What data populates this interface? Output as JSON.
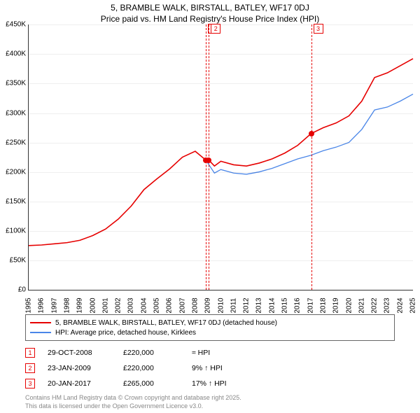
{
  "title_line1": "5, BRAMBLE WALK, BIRSTALL, BATLEY, WF17 0DJ",
  "title_line2": "Price paid vs. HM Land Registry's House Price Index (HPI)",
  "chart": {
    "type": "line",
    "background_color": "#ffffff",
    "grid_color": "#e6e6e6",
    "axis_color": "#333333",
    "ylim": [
      0,
      450000
    ],
    "ytick_step": 50000,
    "ytick_labels": [
      "£0",
      "£50K",
      "£100K",
      "£150K",
      "£200K",
      "£250K",
      "£300K",
      "£350K",
      "£400K",
      "£450K"
    ],
    "xlim": [
      1995,
      2025
    ],
    "xtick_step": 1,
    "xtick_labels": [
      "1995",
      "1996",
      "1997",
      "1998",
      "1999",
      "2000",
      "2001",
      "2002",
      "2003",
      "2004",
      "2005",
      "2006",
      "2007",
      "2008",
      "2009",
      "2010",
      "2011",
      "2012",
      "2013",
      "2014",
      "2015",
      "2016",
      "2017",
      "2018",
      "2019",
      "2020",
      "2021",
      "2022",
      "2023",
      "2024",
      "2025"
    ],
    "label_fontsize": 10,
    "series": [
      {
        "name": "price_paid",
        "label": "5, BRAMBLE WALK, BIRSTALL, BATLEY, WF17 0DJ (detached house)",
        "color": "#e60000",
        "line_width": 1.6,
        "x": [
          1995,
          1996,
          1997,
          1998,
          1999,
          2000,
          2001,
          2002,
          2003,
          2004,
          2005,
          2006,
          2007,
          2008,
          2008.83,
          2009.06,
          2009.5,
          2010,
          2011,
          2012,
          2013,
          2014,
          2015,
          2016,
          2017.05,
          2018,
          2019,
          2020,
          2021,
          2022,
          2023,
          2024,
          2025
        ],
        "y": [
          75000,
          76000,
          78000,
          80000,
          84000,
          92000,
          103000,
          120000,
          142000,
          170000,
          188000,
          205000,
          225000,
          235000,
          220000,
          220000,
          210000,
          218000,
          212000,
          210000,
          215000,
          222000,
          232000,
          245000,
          265000,
          275000,
          283000,
          295000,
          320000,
          360000,
          368000,
          380000,
          392000
        ]
      },
      {
        "name": "hpi",
        "label": "HPI: Average price, detached house, Kirklees",
        "color": "#4a86e8",
        "line_width": 1.3,
        "x": [
          2008.83,
          2009.5,
          2010,
          2011,
          2012,
          2013,
          2014,
          2015,
          2016,
          2017,
          2018,
          2019,
          2020,
          2021,
          2022,
          2023,
          2024,
          2025
        ],
        "y": [
          220000,
          198000,
          204000,
          198000,
          196000,
          200000,
          206000,
          214000,
          222000,
          228000,
          236000,
          242000,
          250000,
          272000,
          305000,
          310000,
          320000,
          332000
        ]
      }
    ],
    "sale_markers": [
      {
        "n": "1",
        "year": 2008.83,
        "price": 220000,
        "color": "#e60000"
      },
      {
        "n": "2",
        "year": 2009.06,
        "price": 220000,
        "color": "#e60000"
      },
      {
        "n": "3",
        "year": 2017.05,
        "price": 265000,
        "color": "#e60000"
      }
    ],
    "marker_line_color": "#e60000",
    "marker_line_dash": "4,3"
  },
  "legend": {
    "items": [
      {
        "color": "#e60000",
        "label": "5, BRAMBLE WALK, BIRSTALL, BATLEY, WF17 0DJ (detached house)"
      },
      {
        "color": "#4a86e8",
        "label": "HPI: Average price, detached house, Kirklees"
      }
    ]
  },
  "sales_table": {
    "rows": [
      {
        "n": "1",
        "box_color": "#e60000",
        "date": "29-OCT-2008",
        "price": "£220,000",
        "delta": "≈ HPI"
      },
      {
        "n": "2",
        "box_color": "#e60000",
        "date": "23-JAN-2009",
        "price": "£220,000",
        "delta": "9% ↑ HPI"
      },
      {
        "n": "3",
        "box_color": "#e60000",
        "date": "20-JAN-2017",
        "price": "£265,000",
        "delta": "17% ↑ HPI"
      }
    ]
  },
  "footer_line1": "Contains HM Land Registry data © Crown copyright and database right 2025.",
  "footer_line2": "This data is licensed under the Open Government Licence v3.0."
}
